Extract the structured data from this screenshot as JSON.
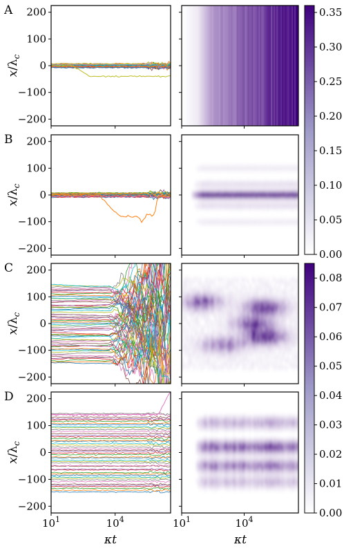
{
  "figure": {
    "panel_letters": [
      "A",
      "B",
      "C",
      "D"
    ],
    "ylabel_var": "x",
    "ylabel_sub": "c",
    "xlabel_var": "κt",
    "x_tick_base": "10",
    "x_tick_exps": [
      "1",
      "4"
    ],
    "y_ticks": [
      "200",
      "100",
      "0",
      "−100",
      "−200"
    ],
    "colorbar_top_ticks": [
      "0.35",
      "0.30",
      "0.25",
      "0.20",
      "0.15",
      "0.10",
      "0.05",
      "0.00"
    ],
    "colorbar_bottom_ticks": [
      "0.08",
      "0.07",
      "0.06",
      "0.05",
      "0.04",
      "0.03",
      "0.02",
      "0.01",
      "0.00"
    ]
  },
  "colors": {
    "cmap_low": "#ffffff",
    "cmap_high": "#3f007d",
    "line_palette": [
      "#1f77b4",
      "#ff7f0e",
      "#2ca02c",
      "#d62728",
      "#9467bd",
      "#8c564b",
      "#e377c2",
      "#7f7f7f",
      "#bcbd22",
      "#17becf"
    ]
  },
  "chart_data": [
    {
      "panel": "A",
      "type": "line",
      "xscale": "log",
      "xlim": [
        10,
        4000000
      ],
      "ylim": [
        -225,
        225
      ],
      "xlabel": "",
      "ylabel": "x/λc",
      "series_desc": "trajectories clustered near x = 0; one drifting to about -40",
      "drift_trajectory": {
        "from_x": 100,
        "to_y": -40
      }
    },
    {
      "panel": "A",
      "type": "heatmap",
      "xscale": "log",
      "xlim": [
        10,
        4000000
      ],
      "ylim": [
        -225,
        225
      ],
      "zlim": [
        0.0,
        0.36
      ],
      "pattern": "vertical stripes, intensity increasing with time",
      "z_by_time": [
        [
          10,
          0.0
        ],
        [
          60,
          0.03
        ],
        [
          300,
          0.15
        ],
        [
          10000,
          0.22
        ],
        [
          4000000,
          0.34
        ]
      ]
    },
    {
      "panel": "B",
      "type": "line",
      "xscale": "log",
      "xlim": [
        10,
        4000000
      ],
      "ylim": [
        -225,
        225
      ],
      "xlabel": "",
      "ylabel": "x/λc",
      "excursion": [
        [
          2000,
          0
        ],
        [
          8000,
          -60
        ],
        [
          20000,
          -80
        ],
        [
          120000,
          -80
        ],
        [
          180000,
          -100
        ],
        [
          300000,
          -75
        ],
        [
          700000,
          -75
        ],
        [
          1000000,
          -5
        ],
        [
          4000000,
          -5
        ]
      ]
    },
    {
      "panel": "B",
      "type": "heatmap",
      "xscale": "log",
      "xlim": [
        10,
        4000000
      ],
      "ylim": [
        -225,
        225
      ],
      "zlim": [
        0.0,
        0.36
      ],
      "pattern": "horizontal band centered at x = 0",
      "bands": [
        {
          "y": 0,
          "z": 0.33
        },
        {
          "y": 40,
          "z": 0.05
        },
        {
          "y": -40,
          "z": 0.05
        },
        {
          "y": 100,
          "z": 0.03
        },
        {
          "y": -100,
          "z": 0.03
        }
      ]
    },
    {
      "panel": "C",
      "type": "line",
      "xscale": "log",
      "xlim": [
        10,
        4000000
      ],
      "ylim": [
        -225,
        225
      ],
      "xlabel": "",
      "ylabel": "x/λc",
      "initial_range": [
        -150,
        150
      ],
      "spreading_onset": 5000
    },
    {
      "panel": "C",
      "type": "heatmap",
      "xscale": "log",
      "xlim": [
        10,
        4000000
      ],
      "ylim": [
        -225,
        225
      ],
      "zlim": [
        0.0,
        0.085
      ],
      "pattern": "diffuse blobs, strongest near x = 80, 0 and -50",
      "hotspots": [
        {
          "x": 100000,
          "y": 60,
          "z": 0.06
        },
        {
          "x": 30000,
          "y": 0,
          "z": 0.05
        },
        {
          "x": 100000,
          "y": -50,
          "z": 0.065
        },
        {
          "x": 100,
          "y": 80,
          "z": 0.045
        },
        {
          "x": 1000,
          "y": -80,
          "z": 0.04
        }
      ]
    },
    {
      "panel": "D",
      "type": "line",
      "xscale": "log",
      "xlim": [
        10,
        4000000
      ],
      "ylim": [
        -225,
        225
      ],
      "xlabel": "κt",
      "ylabel": "x/λc",
      "initial_range": [
        -150,
        150
      ],
      "escape_trajectory": {
        "from_x": 1000000,
        "to_y": 225
      }
    },
    {
      "panel": "D",
      "type": "heatmap",
      "xscale": "log",
      "xlim": [
        10,
        4000000
      ],
      "ylim": [
        -225,
        225
      ],
      "zlim": [
        0.0,
        0.085
      ],
      "pattern": "broad band between x = -140 and 150, strongest around x = 20 and -50",
      "xlabel": "κt",
      "bands": [
        {
          "y": 20,
          "z": 0.05
        },
        {
          "y": -50,
          "z": 0.04
        },
        {
          "y": 110,
          "z": 0.025
        },
        {
          "y": -110,
          "z": 0.02
        }
      ]
    }
  ]
}
